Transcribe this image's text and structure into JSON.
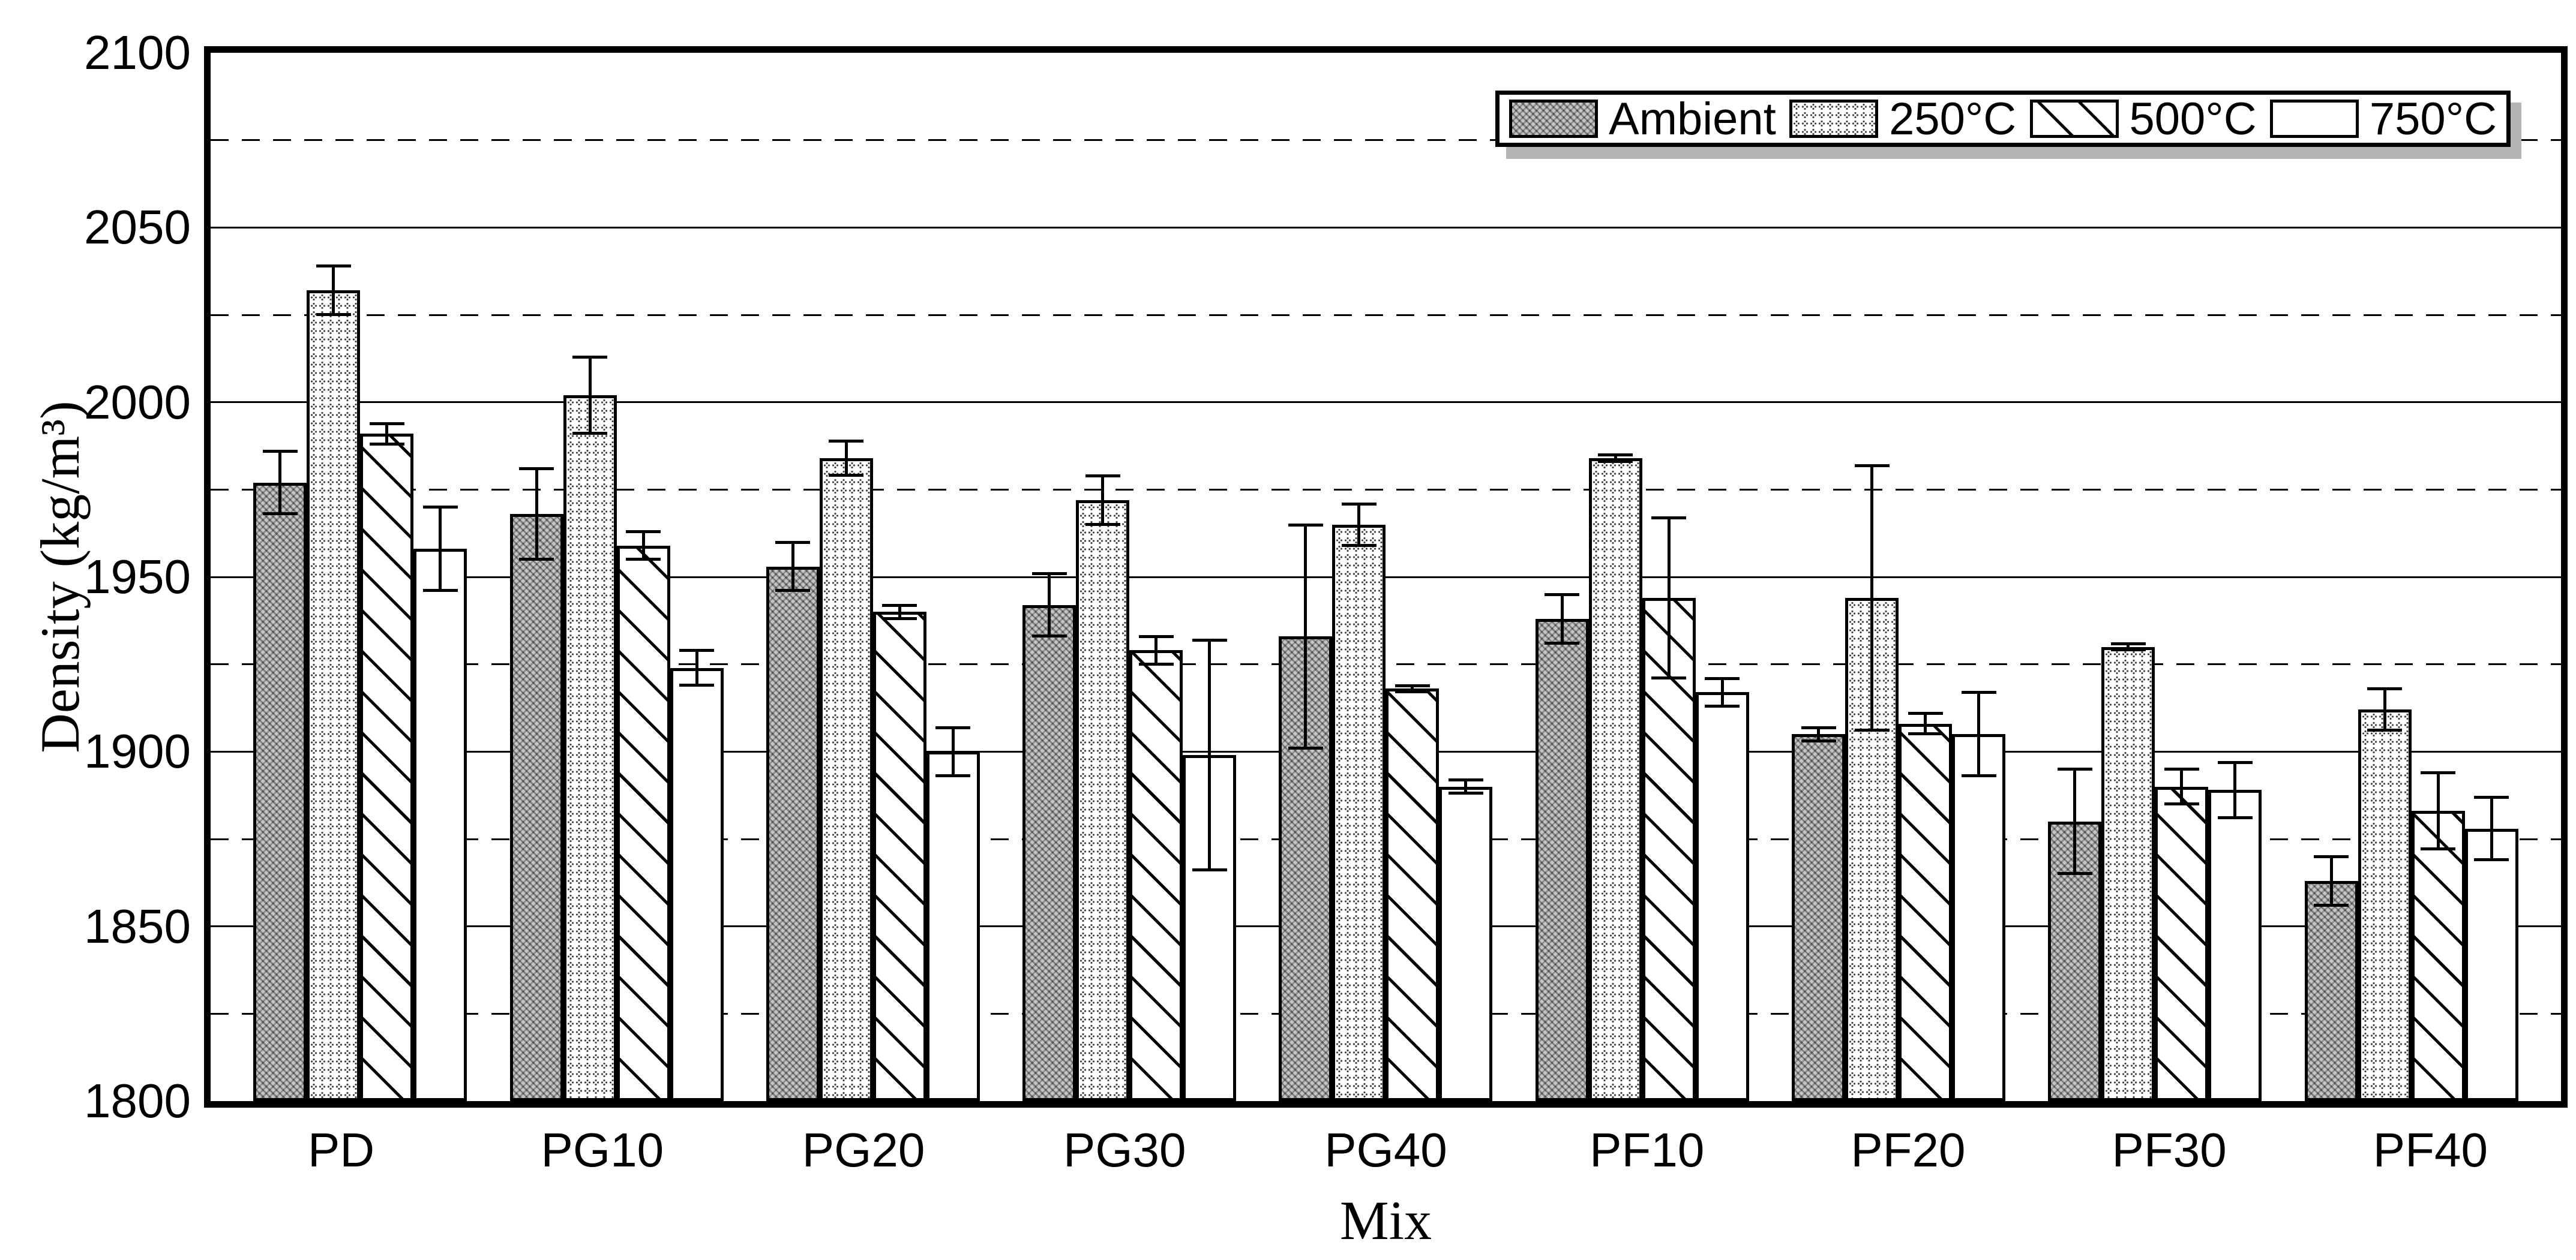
{
  "chart_data": {
    "type": "bar",
    "title": "",
    "xlabel": "Mix",
    "ylabel": "Density (kg/m³)",
    "ylim": [
      1800,
      2100
    ],
    "y_major_ticks": [
      2100,
      2050,
      2000,
      1950,
      1900,
      1850,
      1800
    ],
    "y_solid_gridlines": [
      2050,
      2000,
      1950,
      1900,
      1850
    ],
    "y_dashed_gridlines": [
      2075,
      2025,
      1975,
      1925,
      1875,
      1825
    ],
    "grid": true,
    "legend_position": "top-right-inside",
    "categories": [
      "PD",
      "PG10",
      "PG20",
      "PG30",
      "PG40",
      "PF10",
      "PF20",
      "PF30",
      "PF40"
    ],
    "series": [
      {
        "name": "Ambient",
        "pattern": "gray-texture",
        "values": [
          1977,
          1968,
          1953,
          1942,
          1933,
          1938,
          1905,
          1880,
          1863
        ],
        "errors": [
          9,
          13,
          7,
          9,
          32,
          7,
          2,
          15,
          7
        ]
      },
      {
        "name": "250°C",
        "pattern": "dotted-grid",
        "values": [
          2032,
          2002,
          1984,
          1972,
          1965,
          1984,
          1944,
          1930,
          1912
        ],
        "errors": [
          7,
          11,
          5,
          7,
          6,
          1,
          38,
          1,
          6
        ]
      },
      {
        "name": "500°C",
        "pattern": "diagonal-hatch",
        "values": [
          1991,
          1959,
          1940,
          1929,
          1918,
          1944,
          1908,
          1890,
          1883
        ],
        "errors": [
          3,
          4,
          2,
          4,
          1,
          23,
          3,
          5,
          11
        ]
      },
      {
        "name": "750°C",
        "pattern": "white",
        "values": [
          1958,
          1924,
          1900,
          1899,
          1890,
          1917,
          1905,
          1889,
          1878
        ],
        "errors": [
          12,
          5,
          7,
          33,
          2,
          4,
          12,
          8,
          9
        ]
      }
    ],
    "colors": {
      "axis": "#000000",
      "background": "#ffffff",
      "legend_shadow": "#b5b5b5"
    }
  }
}
